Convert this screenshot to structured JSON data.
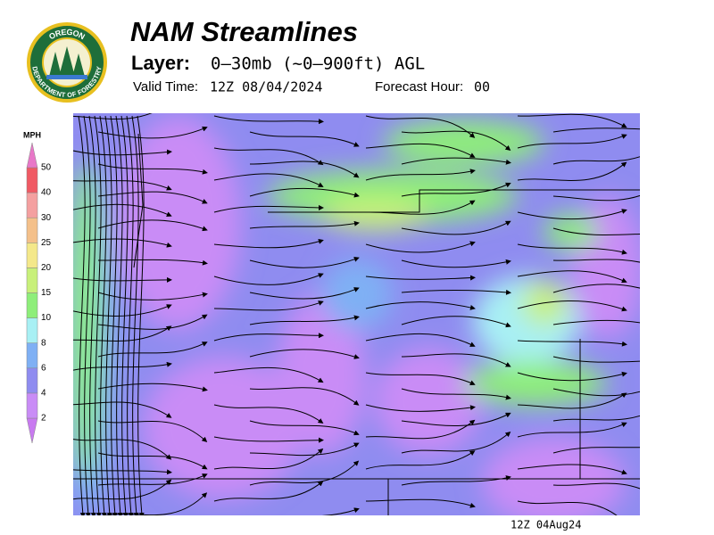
{
  "header": {
    "logo_top": "OREGON",
    "logo_bottom": "DEPARTMENT OF FORESTRY",
    "title": "NAM Streamlines",
    "layer_label": "Layer:",
    "layer": "0–30mb (~0–900ft) AGL",
    "valid_label": "Valid Time:",
    "valid_time": "12Z 08/04/2024",
    "forecast_label": "Forecast Hour:",
    "forecast_hour": "00"
  },
  "colorbar": {
    "unit": "MPH",
    "levels": [
      2,
      4,
      6,
      8,
      10,
      15,
      20,
      25,
      30,
      40,
      50
    ],
    "colors": [
      "#c87af0",
      "#c98cf6",
      "#8f8cf0",
      "#7fb0f4",
      "#a8f0f4",
      "#8eee7a",
      "#c8f07a",
      "#f4e88a",
      "#f4c08a",
      "#f4a0a0",
      "#f05a64",
      "#e878c8"
    ]
  },
  "footer": {
    "stamp": "12Z 04Aug24"
  }
}
